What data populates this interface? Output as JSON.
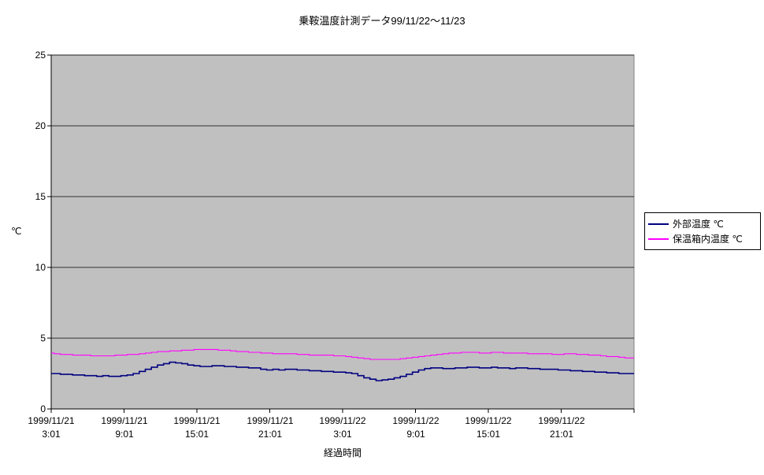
{
  "page": {
    "background": "#FFFFFF"
  },
  "chart_data": {
    "type": "line",
    "title": "乗鞍温度計測データ99/11/22～11/23",
    "xlabel": "経過時間",
    "ylabel": "℃",
    "ylim": [
      0,
      25
    ],
    "y_ticks": [
      0,
      5,
      10,
      15,
      20,
      25
    ],
    "grid": true,
    "plot_bg": "#C0C0C0",
    "legend_position": "right",
    "x_hours_range": [
      0,
      48
    ],
    "x_start_hour": 0,
    "x_step_hours": 0.5,
    "x_tick_hours": [
      0,
      6,
      12,
      18,
      24,
      30,
      36,
      42
    ],
    "x_tick_labels": [
      {
        "date": "1999/11/21",
        "time": "3:01"
      },
      {
        "date": "1999/11/21",
        "time": "9:01"
      },
      {
        "date": "1999/11/21",
        "time": "15:01"
      },
      {
        "date": "1999/11/21",
        "time": "21:01"
      },
      {
        "date": "1999/11/22",
        "time": "3:01"
      },
      {
        "date": "1999/11/22",
        "time": "9:01"
      },
      {
        "date": "1999/11/22",
        "time": "15:01"
      },
      {
        "date": "1999/11/22",
        "time": "21:01"
      }
    ],
    "series": [
      {
        "name": "外部温度 ℃",
        "color": "#000080",
        "values": [
          2.5,
          2.5,
          2.45,
          2.45,
          2.4,
          2.4,
          2.35,
          2.35,
          2.3,
          2.35,
          2.3,
          2.3,
          2.35,
          2.4,
          2.5,
          2.65,
          2.8,
          2.95,
          3.1,
          3.2,
          3.3,
          3.25,
          3.2,
          3.1,
          3.05,
          3.0,
          3.0,
          3.05,
          3.05,
          3.0,
          3.0,
          2.95,
          2.95,
          2.9,
          2.9,
          2.8,
          2.75,
          2.8,
          2.75,
          2.8,
          2.8,
          2.75,
          2.75,
          2.7,
          2.7,
          2.65,
          2.65,
          2.6,
          2.6,
          2.55,
          2.5,
          2.35,
          2.2,
          2.1,
          2.0,
          2.05,
          2.1,
          2.2,
          2.3,
          2.45,
          2.6,
          2.75,
          2.85,
          2.9,
          2.9,
          2.85,
          2.85,
          2.9,
          2.9,
          2.95,
          2.95,
          2.9,
          2.9,
          2.95,
          2.9,
          2.9,
          2.85,
          2.9,
          2.9,
          2.85,
          2.85,
          2.8,
          2.8,
          2.8,
          2.75,
          2.75,
          2.7,
          2.7,
          2.65,
          2.65,
          2.6,
          2.6,
          2.55,
          2.55,
          2.5,
          2.5,
          2.5
        ]
      },
      {
        "name": "保温箱内温度 ℃",
        "color": "#FF00FF",
        "values": [
          3.95,
          3.9,
          3.85,
          3.85,
          3.8,
          3.8,
          3.8,
          3.75,
          3.75,
          3.75,
          3.75,
          3.8,
          3.8,
          3.85,
          3.85,
          3.9,
          3.95,
          4.0,
          4.05,
          4.05,
          4.1,
          4.1,
          4.15,
          4.15,
          4.2,
          4.2,
          4.2,
          4.2,
          4.15,
          4.15,
          4.1,
          4.05,
          4.05,
          4.0,
          4.0,
          3.95,
          3.95,
          3.9,
          3.9,
          3.9,
          3.9,
          3.85,
          3.85,
          3.8,
          3.8,
          3.8,
          3.8,
          3.75,
          3.75,
          3.7,
          3.65,
          3.6,
          3.55,
          3.5,
          3.5,
          3.5,
          3.5,
          3.5,
          3.55,
          3.6,
          3.65,
          3.7,
          3.75,
          3.8,
          3.85,
          3.9,
          3.95,
          3.95,
          4.0,
          4.0,
          4.0,
          3.95,
          3.95,
          4.0,
          4.0,
          3.95,
          3.95,
          3.95,
          3.95,
          3.9,
          3.9,
          3.9,
          3.9,
          3.85,
          3.85,
          3.9,
          3.9,
          3.85,
          3.85,
          3.8,
          3.8,
          3.75,
          3.7,
          3.7,
          3.65,
          3.6,
          3.6
        ]
      }
    ]
  }
}
